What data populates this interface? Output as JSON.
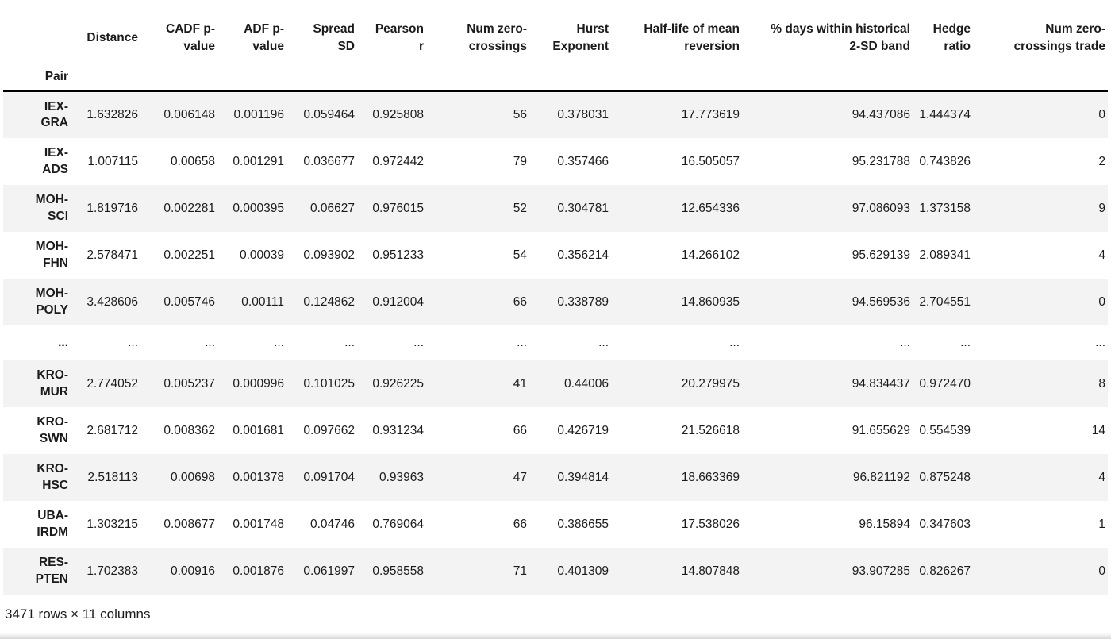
{
  "table": {
    "index_name": "Pair",
    "columns": [
      "Distance",
      "CADF p-\nvalue",
      "ADF p-\nvalue",
      "Spread\nSD",
      "Pearson\nr",
      "Num zero-\ncrossings",
      "Hurst\nExponent",
      "Half-life of mean\nreversion",
      "% days within historical\n2-SD band",
      "Hedge\nratio",
      "Num zero-\ncrossings trade"
    ],
    "rows": [
      {
        "pair": "IEX-\nGRA",
        "values": [
          "1.632826",
          "0.006148",
          "0.001196",
          "0.059464",
          "0.925808",
          "56",
          "0.378031",
          "17.773619",
          "94.437086",
          "1.444374",
          "0"
        ]
      },
      {
        "pair": "IEX-\nADS",
        "values": [
          "1.007115",
          "0.00658",
          "0.001291",
          "0.036677",
          "0.972442",
          "79",
          "0.357466",
          "16.505057",
          "95.231788",
          "0.743826",
          "2"
        ]
      },
      {
        "pair": "MOH-\nSCI",
        "values": [
          "1.819716",
          "0.002281",
          "0.000395",
          "0.06627",
          "0.976015",
          "52",
          "0.304781",
          "12.654336",
          "97.086093",
          "1.373158",
          "9"
        ]
      },
      {
        "pair": "MOH-\nFHN",
        "values": [
          "2.578471",
          "0.002251",
          "0.00039",
          "0.093902",
          "0.951233",
          "54",
          "0.356214",
          "14.266102",
          "95.629139",
          "2.089341",
          "4"
        ]
      },
      {
        "pair": "MOH-\nPOLY",
        "values": [
          "3.428606",
          "0.005746",
          "0.00111",
          "0.124862",
          "0.912004",
          "66",
          "0.338789",
          "14.860935",
          "94.569536",
          "2.704551",
          "0"
        ]
      },
      {
        "pair": "...",
        "values": [
          "...",
          "...",
          "...",
          "...",
          "...",
          "...",
          "...",
          "...",
          "...",
          "...",
          "..."
        ]
      },
      {
        "pair": "KRO-\nMUR",
        "values": [
          "2.774052",
          "0.005237",
          "0.000996",
          "0.101025",
          "0.926225",
          "41",
          "0.44006",
          "20.279975",
          "94.834437",
          "0.972470",
          "8"
        ]
      },
      {
        "pair": "KRO-\nSWN",
        "values": [
          "2.681712",
          "0.008362",
          "0.001681",
          "0.097662",
          "0.931234",
          "66",
          "0.426719",
          "21.526618",
          "91.655629",
          "0.554539",
          "14"
        ]
      },
      {
        "pair": "KRO-\nHSC",
        "values": [
          "2.518113",
          "0.00698",
          "0.001378",
          "0.091704",
          "0.93963",
          "47",
          "0.394814",
          "18.663369",
          "96.821192",
          "0.875248",
          "4"
        ]
      },
      {
        "pair": "UBA-\nIRDM",
        "values": [
          "1.303215",
          "0.008677",
          "0.001748",
          "0.04746",
          "0.769064",
          "66",
          "0.386655",
          "17.538026",
          "96.15894",
          "0.347603",
          "1"
        ]
      },
      {
        "pair": "RES-\nPTEN",
        "values": [
          "1.702383",
          "0.00916",
          "0.001876",
          "0.061997",
          "0.958558",
          "71",
          "0.401309",
          "14.807848",
          "93.907285",
          "0.826267",
          "0"
        ]
      }
    ],
    "footer": "3471 rows × 11 columns"
  },
  "colors": {
    "stripe": "#f3f3f4",
    "header_border": "#000000",
    "text": "#1b1b1b"
  }
}
